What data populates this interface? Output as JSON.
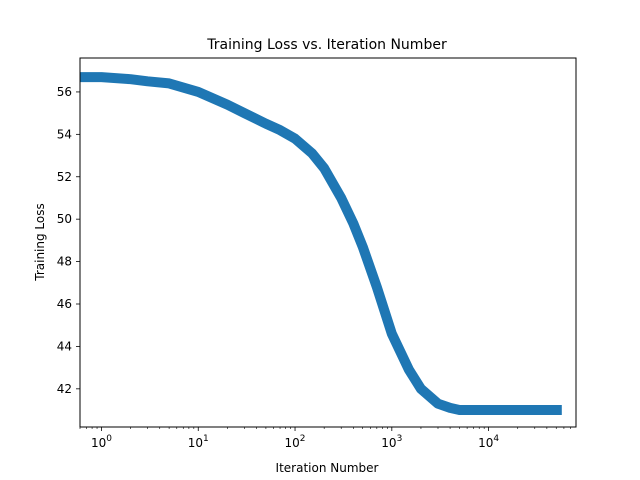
{
  "chart_data": {
    "type": "line",
    "title": "Training Loss vs. Iteration Number",
    "xlabel": "Iteration Number",
    "ylabel": "Training Loss",
    "xscale": "log",
    "xlim": [
      0.6,
      80000
    ],
    "ylim": [
      40.2,
      57.6
    ],
    "grid": false,
    "legend": "none",
    "color": "#1f77b4",
    "xticks": [
      {
        "value": 1,
        "base": "10",
        "exp": "0"
      },
      {
        "value": 10,
        "base": "10",
        "exp": "1"
      },
      {
        "value": 100,
        "base": "10",
        "exp": "2"
      },
      {
        "value": 1000,
        "base": "10",
        "exp": "3"
      },
      {
        "value": 10000,
        "base": "10",
        "exp": "4"
      }
    ],
    "yticks": [
      42,
      44,
      46,
      48,
      50,
      52,
      54,
      56
    ],
    "series": [
      {
        "x": [
          0.6,
          1,
          2,
          3,
          5,
          10,
          20,
          30,
          50,
          70,
          100,
          150,
          200,
          300,
          400,
          500,
          700,
          1000,
          1500,
          2000,
          3000,
          4000,
          5000,
          7000,
          10000,
          20000,
          30000,
          57000
        ],
        "y": [
          56.7,
          56.7,
          56.6,
          56.5,
          56.4,
          56.0,
          55.4,
          55.0,
          54.5,
          54.2,
          53.8,
          53.1,
          52.4,
          51.0,
          49.8,
          48.7,
          46.8,
          44.6,
          42.9,
          42.0,
          41.3,
          41.1,
          41.0,
          41.0,
          41.0,
          41.0,
          41.0,
          41.0
        ]
      }
    ]
  }
}
